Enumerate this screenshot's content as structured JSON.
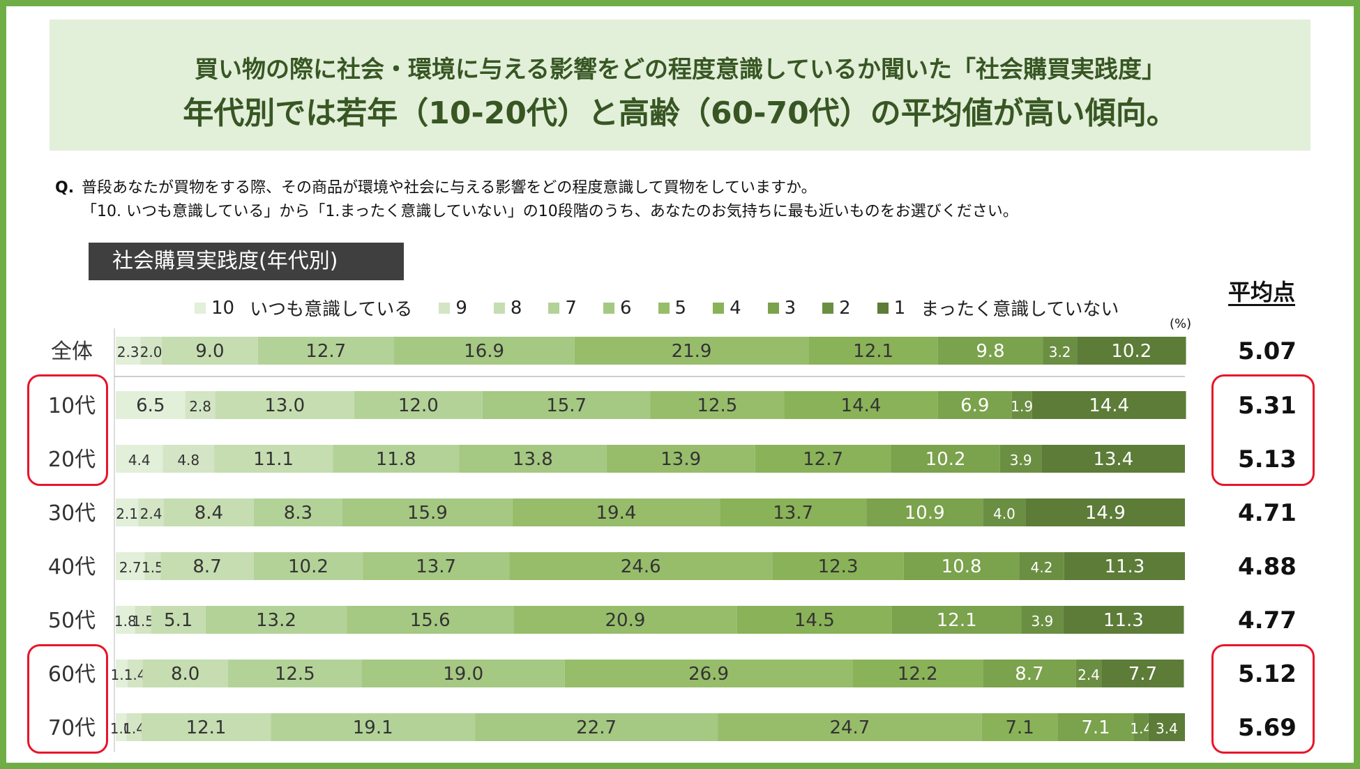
{
  "title": {
    "line1": "買い物の際に社会・環境に与える影響をどの程度意識しているか聞いた「社会購買実践度」",
    "line2": "年代別では若年（10-20代）と高齢（60-70代）の平均値が高い傾向。"
  },
  "question": {
    "label": "Q.",
    "line1": "普段あなたが買物をする際、その商品が環境や社会に与える影響をどの程度意識して買物をしていますか。",
    "line2": "「10. いつも意識している」から「1.まったく意識していない」の10段階のうち、あなたのお気持ちに最も近いものをお選びください。"
  },
  "chart_label": "社会購買実践度(年代別)",
  "avg_header": "平均点",
  "unit": "(%)",
  "colors": {
    "swatches": [
      "#e2efd9",
      "#d3e5c4",
      "#c5ddb0",
      "#b3d298",
      "#a5c882",
      "#97bd6b",
      "#8ab258",
      "#7ba24c",
      "#6b8f42",
      "#5c7c38"
    ],
    "frame": "#70ad47",
    "title_bg": "#e2efd9",
    "title_text": "#375623",
    "highlight": "#e8142b"
  },
  "chart_data": {
    "type": "bar",
    "orientation": "horizontal-stacked-100",
    "title": "社会購買実践度(年代別)",
    "legend": [
      {
        "key": "10",
        "label": "10",
        "desc": "いつも意識している"
      },
      {
        "key": "9",
        "label": "9"
      },
      {
        "key": "8",
        "label": "8"
      },
      {
        "key": "7",
        "label": "7"
      },
      {
        "key": "6",
        "label": "6"
      },
      {
        "key": "5",
        "label": "5"
      },
      {
        "key": "4",
        "label": "4"
      },
      {
        "key": "3",
        "label": "3"
      },
      {
        "key": "2",
        "label": "2"
      },
      {
        "key": "1",
        "label": "1",
        "desc": "まったく意識していない"
      }
    ],
    "categories": [
      "全体",
      "10代",
      "20代",
      "30代",
      "40代",
      "50代",
      "60代",
      "70代"
    ],
    "series": [
      {
        "name": "10",
        "values": [
          2.3,
          6.5,
          4.4,
          2.1,
          2.7,
          1.8,
          1.1,
          1.0
        ]
      },
      {
        "name": "9",
        "values": [
          2.0,
          2.8,
          4.8,
          2.4,
          1.5,
          1.5,
          1.4,
          1.4
        ]
      },
      {
        "name": "8",
        "values": [
          9.0,
          13.0,
          11.1,
          8.4,
          8.7,
          5.1,
          8.0,
          12.1
        ]
      },
      {
        "name": "7",
        "values": [
          12.7,
          12.0,
          11.8,
          8.3,
          10.2,
          13.2,
          12.5,
          19.1
        ]
      },
      {
        "name": "6",
        "values": [
          16.9,
          15.7,
          13.8,
          15.9,
          13.7,
          15.6,
          19.0,
          22.7
        ]
      },
      {
        "name": "5",
        "values": [
          21.9,
          12.5,
          13.9,
          19.4,
          24.6,
          20.9,
          26.9,
          24.7
        ]
      },
      {
        "name": "4",
        "values": [
          12.1,
          14.4,
          12.7,
          13.7,
          12.3,
          14.5,
          12.2,
          7.1
        ]
      },
      {
        "name": "3",
        "values": [
          9.8,
          6.9,
          10.2,
          10.9,
          10.8,
          12.1,
          8.7,
          7.1
        ]
      },
      {
        "name": "2",
        "values": [
          3.2,
          1.9,
          3.9,
          4.0,
          4.2,
          3.9,
          2.4,
          1.4
        ]
      },
      {
        "name": "1",
        "values": [
          10.2,
          14.4,
          13.4,
          14.9,
          11.3,
          11.3,
          7.7,
          3.4
        ]
      }
    ],
    "averages": [
      "5.07",
      "5.31",
      "5.13",
      "4.71",
      "4.88",
      "4.77",
      "5.12",
      "5.69"
    ],
    "highlighted": [
      "10代",
      "20代",
      "60代",
      "70代"
    ],
    "xlim": [
      0,
      100
    ],
    "unit": "%"
  }
}
